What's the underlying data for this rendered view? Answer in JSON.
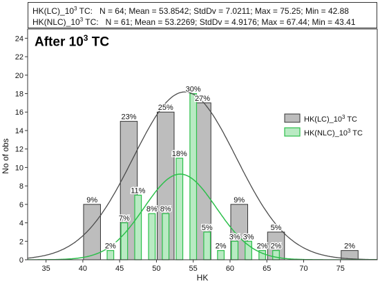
{
  "stats": {
    "lc_name": "HK(LC)_",
    "lc_values": "N = 64; Mean = 53.8542; StdDv = 7.0211; Max = 75.25; Min = 42.88",
    "nlc_name": "HK(NLC)_",
    "nlc_values": "N = 61; Mean = 53.2269; StdDv = 4.9176; Max = 67.44; Min = 43.41",
    "exp_base": "10",
    "exp_power": "3",
    "exp_suffix": " TC:"
  },
  "panel_label": {
    "prefix": "After ",
    "base": "10",
    "power": "3",
    "suffix": " TC"
  },
  "colors": {
    "lc_fill": "#bdbdbd",
    "lc_stroke": "#333333",
    "nlc_fill": "#b9eac3",
    "nlc_stroke": "#2bbf4a",
    "lc_curve": "#4a4a4a",
    "nlc_curve": "#2bbf4a"
  },
  "chart_data": {
    "type": "bar",
    "xlabel": "HK",
    "ylabel": "No of obs",
    "xlim": [
      32.5,
      80
    ],
    "ylim": [
      0,
      25
    ],
    "xticks": [
      35,
      40,
      45,
      50,
      55,
      60,
      65,
      70,
      75
    ],
    "yticks": [
      0,
      2,
      4,
      6,
      8,
      10,
      12,
      14,
      16,
      18,
      20,
      22,
      24
    ],
    "legend_position": "right",
    "series": [
      {
        "name": "HK(LC)_10³ TC",
        "legend_base": "HK(LC)_10",
        "legend_power": "3",
        "legend_suffix": " TC",
        "bins": [
          {
            "x": 41.25,
            "value": 6,
            "label": "9%"
          },
          {
            "x": 46.25,
            "value": 15,
            "label": "23%"
          },
          {
            "x": 51.25,
            "value": 16,
            "label": "25%"
          },
          {
            "x": 56.25,
            "value": 17,
            "label": "27%"
          },
          {
            "x": 61.25,
            "value": 6,
            "label": "9%"
          },
          {
            "x": 66.25,
            "value": 3,
            "label": "5%"
          },
          {
            "x": 76.25,
            "value": 1,
            "label": "2%"
          }
        ],
        "normal_fit": {
          "mean": 53.8542,
          "sd": 7.0211,
          "n": 64,
          "bin_width": 5
        }
      },
      {
        "name": "HK(NLC)_10³ TC",
        "legend_base": "HK(NLC)_10",
        "legend_power": "3",
        "legend_suffix": " TC",
        "bins": [
          {
            "x": 43.75,
            "value": 1,
            "label": "2%"
          },
          {
            "x": 45.63,
            "value": 4,
            "label": "7%"
          },
          {
            "x": 47.5,
            "value": 7,
            "label": "11%"
          },
          {
            "x": 49.38,
            "value": 5,
            "label": "8%"
          },
          {
            "x": 51.25,
            "value": 5,
            "label": "8%"
          },
          {
            "x": 53.13,
            "value": 11,
            "label": "18%"
          },
          {
            "x": 55.0,
            "value": 18,
            "label": "30%"
          },
          {
            "x": 56.88,
            "value": 3,
            "label": "5%"
          },
          {
            "x": 58.75,
            "value": 1,
            "label": "2%"
          },
          {
            "x": 60.63,
            "value": 2,
            "label": "3%"
          },
          {
            "x": 62.5,
            "value": 2,
            "label": "3%"
          },
          {
            "x": 64.38,
            "value": 1,
            "label": "2%"
          },
          {
            "x": 66.25,
            "value": 1,
            "label": "2%"
          }
        ],
        "normal_fit": {
          "mean": 53.2269,
          "sd": 4.9176,
          "n": 61,
          "bin_width": 1.875
        }
      }
    ]
  }
}
